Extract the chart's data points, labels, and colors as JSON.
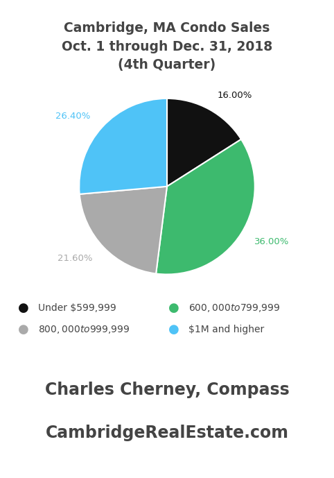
{
  "title": "Cambridge, MA Condo Sales\nOct. 1 through Dec. 31, 2018\n(4th Quarter)",
  "title_fontsize": 13.5,
  "title_fontweight": "bold",
  "title_color": "#444444",
  "slices": [
    16.0,
    36.0,
    21.6,
    26.4
  ],
  "slice_labels": [
    "16.00%",
    "36.00%",
    "21.60%",
    "26.40%"
  ],
  "slice_colors": [
    "#111111",
    "#3dba6e",
    "#aaaaaa",
    "#4fc3f7"
  ],
  "label_colors": [
    "#111111",
    "#3dba6e",
    "#aaaaaa",
    "#4fc3f7"
  ],
  "legend_labels": [
    "Under $599,999",
    "$600,000 to $799,999",
    "$800,000 to $999,999",
    "$1M and higher"
  ],
  "legend_colors": [
    "#111111",
    "#3dba6e",
    "#aaaaaa",
    "#4fc3f7"
  ],
  "footer_line1": "Charles Cherney, Compass",
  "footer_line2": "CambridgeRealEstate.com",
  "footer_color": "#444444",
  "footer_fontsize": 17,
  "background_color": "#ffffff",
  "startangle": 90
}
